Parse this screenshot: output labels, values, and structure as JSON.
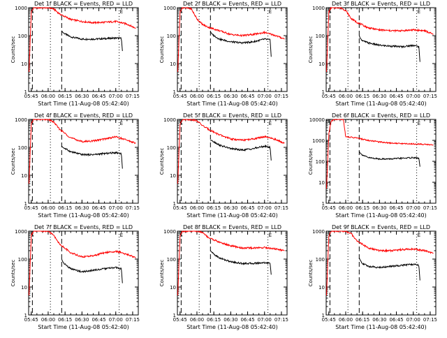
{
  "app": {
    "background": "#ffffff",
    "event_color": "#000000",
    "lld_color": "#ff0000"
  },
  "chart_data": [
    {
      "type": "line",
      "title": "Det 1f BLACK = Events, RED = LLD",
      "xlabel": "Start Time (11-Aug-08 05:42:40)",
      "ylabel": "Counts/sec",
      "xlim": [
        "05:42:40",
        "07:20:00"
      ],
      "ylim": [
        1,
        1000
      ],
      "yscale": "log",
      "xticks": [
        "05:45",
        "06:00",
        "06:15",
        "06:30",
        "06:45",
        "07:00",
        "07:15"
      ],
      "yticks": [
        "1",
        "10",
        "100",
        "1000"
      ],
      "flags": [
        {
          "text": "S",
          "x": "05:44"
        },
        {
          "text": "E",
          "x": "07:03"
        }
      ],
      "dashed_x": [
        "05:46",
        "06:12"
      ],
      "dotted_x": [
        "06:02",
        "07:03"
      ],
      "series": [
        {
          "name": "Events",
          "color": "#000000",
          "x": [
            "06:12",
            "06:13",
            "06:15",
            "06:20",
            "06:30",
            "06:40",
            "06:50",
            "07:00",
            "07:05",
            "07:06"
          ],
          "values": [
            150,
            130,
            115,
            90,
            75,
            75,
            78,
            82,
            80,
            25
          ]
        },
        {
          "name": "LLD",
          "color": "#ff0000",
          "x": [
            "05:43",
            "05:45",
            "05:47",
            "05:50",
            "05:55",
            "06:00",
            "06:05",
            "06:10",
            "06:20",
            "06:30",
            "06:40",
            "06:50",
            "07:00",
            "07:10",
            "07:18"
          ],
          "values": [
            5,
            700,
            1000,
            1000,
            1000,
            1000,
            900,
            600,
            380,
            320,
            290,
            300,
            320,
            260,
            180
          ]
        }
      ]
    },
    {
      "type": "line",
      "title": "Det 2f BLACK = Events, RED = LLD",
      "xlabel": "Start Time (11-Aug-08 05:42:40)",
      "ylabel": "Counts/sec",
      "xlim": [
        "05:42:40",
        "07:20:00"
      ],
      "ylim": [
        1,
        1000
      ],
      "yscale": "log",
      "xticks": [
        "05:45",
        "06:00",
        "06:15",
        "06:30",
        "06:45",
        "07:00",
        "07:15"
      ],
      "yticks": [
        "1",
        "10",
        "100",
        "1000"
      ],
      "flags": [
        {
          "text": "S",
          "x": "05:44"
        },
        {
          "text": "E",
          "x": "07:03"
        }
      ],
      "dashed_x": [
        "05:46",
        "06:12"
      ],
      "dotted_x": [
        "06:02",
        "07:03"
      ],
      "series": [
        {
          "name": "Events",
          "color": "#000000",
          "x": [
            "06:12",
            "06:13",
            "06:15",
            "06:20",
            "06:30",
            "06:40",
            "06:50",
            "07:00",
            "07:05",
            "07:06"
          ],
          "values": [
            140,
            120,
            100,
            75,
            60,
            55,
            60,
            75,
            70,
            15
          ]
        },
        {
          "name": "LLD",
          "color": "#ff0000",
          "x": [
            "05:43",
            "05:45",
            "05:47",
            "05:50",
            "05:55",
            "06:00",
            "06:05",
            "06:10",
            "06:20",
            "06:30",
            "06:40",
            "06:50",
            "07:00",
            "07:10",
            "07:18"
          ],
          "values": [
            5,
            700,
            1000,
            1000,
            900,
            400,
            250,
            200,
            150,
            110,
            100,
            110,
            130,
            100,
            75
          ]
        }
      ]
    },
    {
      "type": "line",
      "title": "Det 3f BLACK = Events, RED = LLD",
      "xlabel": "Start Time (11-Aug-08 05:42:40)",
      "ylabel": "Counts/sec",
      "xlim": [
        "05:42:40",
        "07:20:00"
      ],
      "ylim": [
        1,
        1000
      ],
      "yscale": "log",
      "xticks": [
        "05:45",
        "06:00",
        "06:15",
        "06:30",
        "06:45",
        "07:00",
        "07:15"
      ],
      "yticks": [
        "1",
        "10",
        "100",
        "1000"
      ],
      "flags": [
        {
          "text": "S",
          "x": "05:44"
        },
        {
          "text": "E",
          "x": "07:03"
        }
      ],
      "dashed_x": [
        "05:46",
        "06:12"
      ],
      "dotted_x": [
        "06:02",
        "07:03"
      ],
      "series": [
        {
          "name": "Events",
          "color": "#000000",
          "x": [
            "06:12",
            "06:13",
            "06:15",
            "06:20",
            "06:30",
            "06:40",
            "06:50",
            "07:00",
            "07:05",
            "07:06"
          ],
          "values": [
            100,
            80,
            65,
            55,
            45,
            42,
            40,
            45,
            40,
            10
          ]
        },
        {
          "name": "LLD",
          "color": "#ff0000",
          "x": [
            "05:43",
            "05:45",
            "05:47",
            "05:50",
            "05:55",
            "06:00",
            "06:05",
            "06:10",
            "06:20",
            "06:30",
            "06:40",
            "06:50",
            "07:00",
            "07:10",
            "07:18"
          ],
          "values": [
            5,
            700,
            1000,
            1000,
            1000,
            800,
            400,
            300,
            190,
            160,
            150,
            150,
            160,
            150,
            110
          ]
        }
      ]
    },
    {
      "type": "line",
      "title": "Det 4f BLACK = Events, RED = LLD",
      "xlabel": "Start Time (11-Aug-08 05:42:40)",
      "ylabel": "Counts/sec",
      "xlim": [
        "05:42:40",
        "07:20:00"
      ],
      "ylim": [
        1,
        1000
      ],
      "yscale": "log",
      "xticks": [
        "05:45",
        "06:00",
        "06:15",
        "06:30",
        "06:45",
        "07:00",
        "07:15"
      ],
      "yticks": [
        "1",
        "10",
        "100",
        "1000"
      ],
      "flags": [
        {
          "text": "S",
          "x": "05:44"
        },
        {
          "text": "E",
          "x": "07:03"
        }
      ],
      "dashed_x": [
        "05:46",
        "06:12"
      ],
      "dotted_x": [
        "06:02",
        "07:03"
      ],
      "series": [
        {
          "name": "Events",
          "color": "#000000",
          "x": [
            "06:12",
            "06:13",
            "06:15",
            "06:20",
            "06:30",
            "06:40",
            "06:50",
            "07:00",
            "07:05",
            "07:06"
          ],
          "values": [
            110,
            100,
            90,
            70,
            55,
            55,
            60,
            65,
            60,
            15
          ]
        },
        {
          "name": "LLD",
          "color": "#ff0000",
          "x": [
            "05:43",
            "05:45",
            "05:47",
            "05:50",
            "05:55",
            "06:00",
            "06:05",
            "06:10",
            "06:20",
            "06:30",
            "06:40",
            "06:50",
            "07:00",
            "07:10",
            "07:18"
          ],
          "values": [
            5,
            700,
            1000,
            1000,
            1000,
            1000,
            800,
            450,
            220,
            160,
            170,
            200,
            240,
            180,
            140
          ]
        }
      ]
    },
    {
      "type": "line",
      "title": "Det 5f BLACK = Events, RED = LLD",
      "xlabel": "Start Time (11-Aug-08 05:42:40)",
      "ylabel": "Counts/sec",
      "xlim": [
        "05:42:40",
        "07:20:00"
      ],
      "ylim": [
        1,
        1000
      ],
      "yscale": "log",
      "xticks": [
        "05:45",
        "06:00",
        "06:15",
        "06:30",
        "06:45",
        "07:00",
        "07:15"
      ],
      "yticks": [
        "1",
        "10",
        "100",
        "1000"
      ],
      "flags": [
        {
          "text": "S",
          "x": "05:44"
        },
        {
          "text": "E",
          "x": "07:03"
        }
      ],
      "dashed_x": [
        "05:46",
        "06:12"
      ],
      "dotted_x": [
        "06:02",
        "07:03"
      ],
      "series": [
        {
          "name": "Events",
          "color": "#000000",
          "x": [
            "06:12",
            "06:13",
            "06:15",
            "06:20",
            "06:30",
            "06:40",
            "06:50",
            "07:00",
            "07:05",
            "07:06"
          ],
          "values": [
            170,
            180,
            160,
            120,
            90,
            80,
            90,
            110,
            100,
            30
          ]
        },
        {
          "name": "LLD",
          "color": "#ff0000",
          "x": [
            "05:43",
            "05:45",
            "05:47",
            "05:50",
            "05:55",
            "06:00",
            "06:05",
            "06:10",
            "06:20",
            "06:30",
            "06:40",
            "06:50",
            "07:00",
            "07:10",
            "07:18"
          ],
          "values": [
            5,
            700,
            1000,
            1000,
            1000,
            900,
            600,
            450,
            280,
            200,
            180,
            200,
            240,
            190,
            140
          ]
        }
      ]
    },
    {
      "type": "line",
      "title": "Det 6f BLACK = Events, RED = LLD",
      "xlabel": "Start Time (11-Aug-08 05:42:40)",
      "ylabel": "Counts/sec",
      "xlim": [
        "05:42:40",
        "07:20:00"
      ],
      "ylim": [
        1,
        10000
      ],
      "yscale": "log",
      "xticks": [
        "05:45",
        "06:00",
        "06:15",
        "06:30",
        "06:45",
        "07:00",
        "07:15"
      ],
      "yticks": [
        "1",
        "10",
        "100",
        "1000",
        "10000"
      ],
      "flags": [
        {
          "text": "S",
          "x": "05:44"
        },
        {
          "text": "E",
          "x": "07:03"
        }
      ],
      "dashed_x": [
        "05:46",
        "06:12"
      ],
      "dotted_x": [
        "06:02",
        "07:03"
      ],
      "series": [
        {
          "name": "Events",
          "color": "#000000",
          "x": [
            "06:12",
            "06:13",
            "06:15",
            "06:20",
            "06:30",
            "06:40",
            "06:50",
            "07:00",
            "07:05",
            "07:06"
          ],
          "values": [
            300,
            240,
            200,
            150,
            130,
            130,
            140,
            150,
            140,
            50
          ]
        },
        {
          "name": "LLD",
          "color": "#ff0000",
          "x": [
            "05:43",
            "05:45",
            "05:47",
            "05:50",
            "05:55",
            "05:58",
            "06:00",
            "06:05",
            "06:10",
            "06:20",
            "06:30",
            "06:40",
            "06:50",
            "07:00",
            "07:10",
            "07:18"
          ],
          "values": [
            5,
            2000,
            8000,
            10000,
            10000,
            10000,
            1500,
            1400,
            1300,
            1000,
            850,
            750,
            700,
            680,
            650,
            600
          ]
        }
      ]
    },
    {
      "type": "line",
      "title": "Det 7f BLACK = Events, RED = LLD",
      "xlabel": "Start Time (11-Aug-08 05:42:40)",
      "ylabel": "Counts/sec",
      "xlim": [
        "05:42:40",
        "07:20:00"
      ],
      "ylim": [
        1,
        1000
      ],
      "yscale": "log",
      "xticks": [
        "05:45",
        "06:00",
        "06:15",
        "06:30",
        "06:45",
        "07:00",
        "07:15"
      ],
      "yticks": [
        "1",
        "10",
        "100",
        "1000"
      ],
      "flags": [
        {
          "text": "S",
          "x": "05:44"
        },
        {
          "text": "E",
          "x": "07:03"
        }
      ],
      "dashed_x": [
        "05:46",
        "06:12"
      ],
      "dotted_x": [
        "06:02",
        "07:03"
      ],
      "series": [
        {
          "name": "Events",
          "color": "#000000",
          "x": [
            "06:12",
            "06:13",
            "06:15",
            "06:20",
            "06:30",
            "06:40",
            "06:50",
            "07:00",
            "07:05",
            "07:06"
          ],
          "values": [
            100,
            80,
            65,
            45,
            35,
            40,
            45,
            50,
            45,
            12
          ]
        },
        {
          "name": "LLD",
          "color": "#ff0000",
          "x": [
            "05:43",
            "05:45",
            "05:47",
            "05:50",
            "05:55",
            "06:00",
            "06:05",
            "06:10",
            "06:20",
            "06:30",
            "06:40",
            "06:50",
            "07:00",
            "07:10",
            "07:18"
          ],
          "values": [
            5,
            700,
            1000,
            1000,
            1000,
            1000,
            700,
            350,
            170,
            120,
            130,
            170,
            190,
            150,
            110
          ]
        }
      ]
    },
    {
      "type": "line",
      "title": "Det 8f BLACK = Events, RED = LLD",
      "xlabel": "Start Time (11-Aug-08 05:42:40)",
      "ylabel": "Counts/sec",
      "xlim": [
        "05:42:40",
        "07:20:00"
      ],
      "ylim": [
        1,
        1000
      ],
      "yscale": "log",
      "xticks": [
        "05:45",
        "06:00",
        "06:15",
        "06:30",
        "06:45",
        "07:00",
        "07:15"
      ],
      "yticks": [
        "1",
        "10",
        "100",
        "1000"
      ],
      "flags": [
        {
          "text": "S",
          "x": "05:44"
        },
        {
          "text": "E",
          "x": "07:03"
        }
      ],
      "dashed_x": [
        "05:46",
        "06:12"
      ],
      "dotted_x": [
        "06:02",
        "07:03"
      ],
      "series": [
        {
          "name": "Events",
          "color": "#000000",
          "x": [
            "06:12",
            "06:13",
            "06:15",
            "06:20",
            "06:30",
            "06:40",
            "06:50",
            "07:00",
            "07:05",
            "07:06"
          ],
          "values": [
            200,
            180,
            150,
            110,
            80,
            70,
            70,
            75,
            70,
            25
          ]
        },
        {
          "name": "LLD",
          "color": "#ff0000",
          "x": [
            "05:43",
            "05:45",
            "05:47",
            "05:50",
            "05:55",
            "06:00",
            "06:05",
            "06:10",
            "06:20",
            "06:30",
            "06:40",
            "06:50",
            "07:00",
            "07:10",
            "07:18"
          ],
          "values": [
            5,
            700,
            1000,
            1000,
            1000,
            1000,
            900,
            600,
            400,
            300,
            250,
            250,
            260,
            230,
            200
          ]
        }
      ]
    },
    {
      "type": "line",
      "title": "Det 9f BLACK = Events, RED = LLD",
      "xlabel": "Start Time (11-Aug-08 05:42:40)",
      "ylabel": "Counts/sec",
      "xlim": [
        "05:42:40",
        "07:20:00"
      ],
      "ylim": [
        1,
        1000
      ],
      "yscale": "log",
      "xticks": [
        "05:45",
        "06:00",
        "06:15",
        "06:30",
        "06:45",
        "07:00",
        "07:15"
      ],
      "yticks": [
        "1",
        "10",
        "100",
        "1000"
      ],
      "flags": [
        {
          "text": "S",
          "x": "05:44"
        },
        {
          "text": "E",
          "x": "07:03"
        }
      ],
      "dashed_x": [
        "05:46",
        "06:12"
      ],
      "dotted_x": [
        "06:02",
        "07:03"
      ],
      "series": [
        {
          "name": "Events",
          "color": "#000000",
          "x": [
            "06:12",
            "06:13",
            "06:15",
            "06:20",
            "06:30",
            "06:40",
            "06:50",
            "07:00",
            "07:05",
            "07:06"
          ],
          "values": [
            110,
            90,
            70,
            55,
            50,
            55,
            60,
            65,
            60,
            15
          ]
        },
        {
          "name": "LLD",
          "color": "#ff0000",
          "x": [
            "05:43",
            "05:45",
            "05:47",
            "05:50",
            "05:55",
            "06:00",
            "06:05",
            "06:10",
            "06:20",
            "06:30",
            "06:40",
            "06:50",
            "07:00",
            "07:10",
            "07:18"
          ],
          "values": [
            5,
            700,
            1000,
            1000,
            1000,
            1000,
            800,
            450,
            250,
            200,
            200,
            220,
            230,
            200,
            160
          ]
        }
      ]
    }
  ]
}
